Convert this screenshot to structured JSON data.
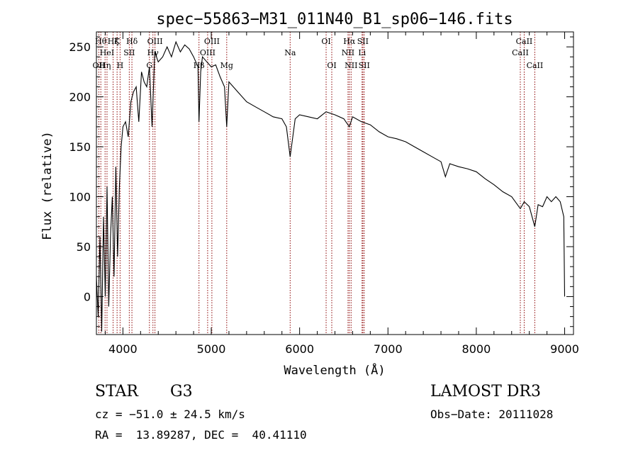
{
  "chart_data": {
    "type": "line",
    "title": "spec−55863−M31_011N40_B1_sp06−146.fits",
    "xlabel": "Wavelength (Å)",
    "ylabel": "Flux (relative)",
    "xlim": [
      3700,
      9100
    ],
    "ylim": [
      -38,
      265
    ],
    "xticks": [
      4000,
      5000,
      6000,
      7000,
      8000,
      9000
    ],
    "yticks": [
      0,
      50,
      100,
      150,
      200,
      250
    ],
    "grid": false,
    "series": [
      {
        "name": "spectrum",
        "x": [
          3700,
          3720,
          3740,
          3760,
          3780,
          3800,
          3820,
          3840,
          3860,
          3880,
          3900,
          3920,
          3940,
          3960,
          3980,
          4000,
          4030,
          4060,
          4090,
          4120,
          4150,
          4180,
          4210,
          4240,
          4270,
          4300,
          4330,
          4360,
          4400,
          4450,
          4500,
          4550,
          4600,
          4650,
          4700,
          4750,
          4800,
          4850,
          4861,
          4880,
          4900,
          4950,
          5000,
          5050,
          5100,
          5150,
          5175,
          5200,
          5300,
          5400,
          5500,
          5600,
          5700,
          5800,
          5850,
          5893,
          5950,
          6000,
          6100,
          6200,
          6300,
          6400,
          6500,
          6563,
          6600,
          6700,
          6800,
          6900,
          7000,
          7100,
          7200,
          7300,
          7400,
          7500,
          7600,
          7650,
          7700,
          7800,
          7900,
          8000,
          8100,
          8200,
          8300,
          8400,
          8498,
          8542,
          8600,
          8662,
          8700,
          8750,
          8800,
          8850,
          8900,
          8950,
          8990,
          9000
        ],
        "y": [
          20,
          -20,
          60,
          -35,
          80,
          0,
          110,
          -10,
          60,
          100,
          20,
          130,
          40,
          110,
          150,
          170,
          175,
          160,
          195,
          205,
          210,
          175,
          225,
          215,
          210,
          230,
          170,
          245,
          235,
          240,
          250,
          240,
          255,
          245,
          252,
          248,
          240,
          230,
          175,
          225,
          240,
          235,
          230,
          232,
          220,
          210,
          170,
          215,
          205,
          195,
          190,
          185,
          180,
          178,
          170,
          140,
          178,
          182,
          180,
          178,
          185,
          182,
          178,
          170,
          180,
          175,
          172,
          165,
          160,
          158,
          155,
          150,
          145,
          140,
          135,
          120,
          133,
          130,
          128,
          125,
          118,
          112,
          105,
          100,
          88,
          95,
          90,
          70,
          92,
          90,
          100,
          95,
          100,
          95,
          80,
          0
        ]
      }
    ],
    "lines": [
      {
        "wl": 3727,
        "label": "OII",
        "row": 3
      },
      {
        "wl": 3750,
        "label": "Hθ",
        "row": 1
      },
      {
        "wl": 3798,
        "label": "Hη",
        "row": 3
      },
      {
        "wl": 3820,
        "label": "HeI",
        "row": 2
      },
      {
        "wl": 3889,
        "label": "Hζ",
        "row": 1
      },
      {
        "wl": 3934,
        "label": "K",
        "row": 1
      },
      {
        "wl": 3968,
        "label": "H",
        "row": 3
      },
      {
        "wl": 4072,
        "label": "SII",
        "row": 2
      },
      {
        "wl": 4102,
        "label": "Hδ",
        "row": 1
      },
      {
        "wl": 4300,
        "label": "G",
        "row": 3
      },
      {
        "wl": 4340,
        "label": "Hγ",
        "row": 2
      },
      {
        "wl": 4363,
        "label": "OIII",
        "row": 1
      },
      {
        "wl": 4861,
        "label": "Hβ",
        "row": 3
      },
      {
        "wl": 4959,
        "label": "OIII",
        "row": 2
      },
      {
        "wl": 5007,
        "label": "OIII",
        "row": 1
      },
      {
        "wl": 5175,
        "label": "Mg",
        "row": 3
      },
      {
        "wl": 5893,
        "label": "Na",
        "row": 2
      },
      {
        "wl": 6300,
        "label": "OI",
        "row": 1
      },
      {
        "wl": 6364,
        "label": "OI",
        "row": 3
      },
      {
        "wl": 6548,
        "label": "NII",
        "row": 2
      },
      {
        "wl": 6563,
        "label": "Hα",
        "row": 1
      },
      {
        "wl": 6583,
        "label": "NII",
        "row": 3
      },
      {
        "wl": 6707,
        "label": "Li",
        "row": 2
      },
      {
        "wl": 6716,
        "label": "SII",
        "row": 1
      },
      {
        "wl": 6731,
        "label": "SII",
        "row": 3
      },
      {
        "wl": 8498,
        "label": "CaII",
        "row": 2
      },
      {
        "wl": 8542,
        "label": "CaII",
        "row": 1
      },
      {
        "wl": 8662,
        "label": "CaII",
        "row": 3
      }
    ]
  },
  "info": {
    "class_label": "STAR",
    "subclass": "G3",
    "survey": "LAMOST DR3",
    "redshift": "cz = −51.0 ± 24.5 km/s",
    "obs_date": "Obs−Date: 20111028",
    "coords": "RA =  13.89287, DEC =  40.41110"
  },
  "colors": {
    "spectrum": "#000000",
    "line_marker": "#8b0000",
    "axis": "#000000",
    "background": "#ffffff"
  }
}
